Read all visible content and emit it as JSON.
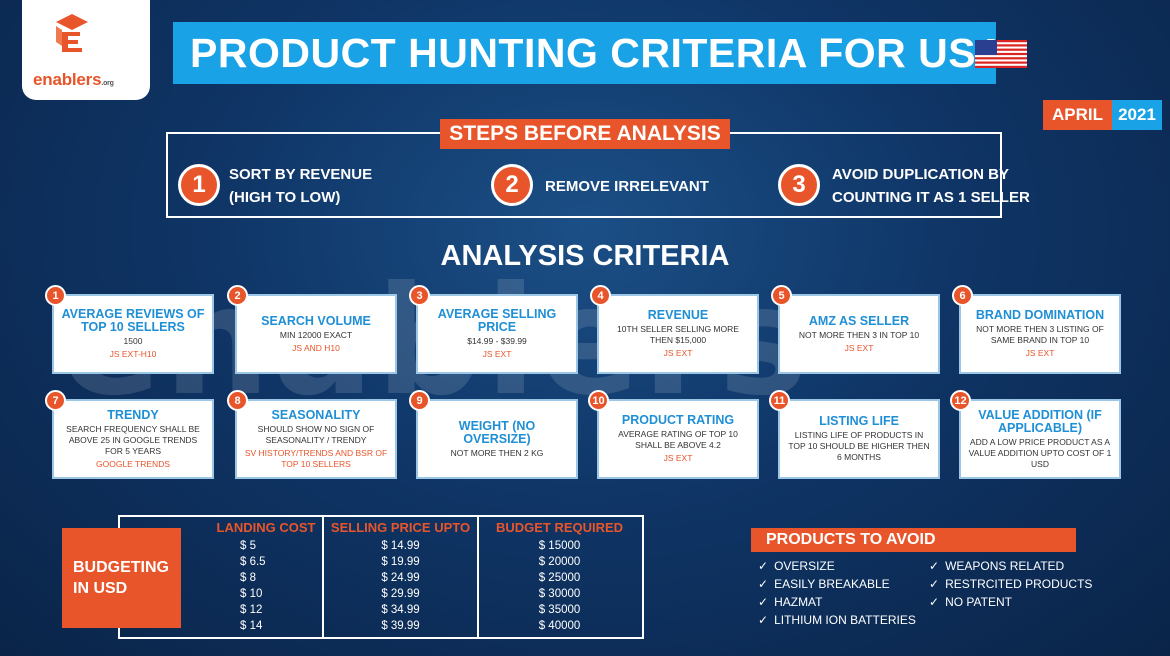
{
  "logo": {
    "name": "enablers",
    "suffix": ".org"
  },
  "title": "PRODUCT HUNTING CRITERIA FOR USA",
  "date": {
    "month": "APRIL",
    "year": "2021"
  },
  "steps": {
    "title": "STEPS BEFORE ANALYSIS",
    "items": [
      {
        "num": "1",
        "line1": "SORT BY REVENUE",
        "line2": "(HIGH TO LOW)"
      },
      {
        "num": "2",
        "line1": "REMOVE IRRELEVANT",
        "line2": ""
      },
      {
        "num": "3",
        "line1": "AVOID DUPLICATION BY",
        "line2": "COUNTING IT AS 1 SELLER"
      }
    ]
  },
  "analysis": {
    "title": "ANALYSIS CRITERIA",
    "cards": [
      {
        "num": "1",
        "title": "AVERAGE REVIEWS OF TOP 10 SELLERS",
        "desc": "1500",
        "source": "JS EXT-H10"
      },
      {
        "num": "2",
        "title": "SEARCH VOLUME",
        "desc": "MIN 12000 EXACT",
        "source": "JS AND H10"
      },
      {
        "num": "3",
        "title": "AVERAGE SELLING PRICE",
        "desc": "$14.99 - $39.99",
        "source": "JS EXT"
      },
      {
        "num": "4",
        "title": "REVENUE",
        "desc": "10TH SELLER SELLING MORE THEN $15,000",
        "source": "JS EXT"
      },
      {
        "num": "5",
        "title": "AMZ AS SELLER",
        "desc": "NOT MORE THEN 3 IN TOP 10",
        "source": "JS EXT"
      },
      {
        "num": "6",
        "title": "BRAND DOMINATION",
        "desc": "NOT MORE THEN 3 LISTING OF SAME BRAND IN TOP 10",
        "source": "JS EXT"
      },
      {
        "num": "7",
        "title": "TRENDY",
        "desc": "SEARCH FREQUENCY SHALL BE ABOVE 25 IN GOOGLE TRENDS FOR 5 YEARS",
        "source": "GOOGLE TRENDS"
      },
      {
        "num": "8",
        "title": "SEASONALITY",
        "desc": "SHOULD SHOW NO SIGN OF SEASONALITY / TRENDY",
        "source": "SV HISTORY/TRENDS AND BSR OF TOP 10 SELLERS"
      },
      {
        "num": "9",
        "title": "WEIGHT (NO OVERSIZE)",
        "desc": "NOT MORE THEN 2 KG",
        "source": ""
      },
      {
        "num": "10",
        "title": "PRODUCT RATING",
        "desc": "AVERAGE RATING OF TOP 10 SHALL BE ABOVE 4.2",
        "source": "JS EXT"
      },
      {
        "num": "11",
        "title": "LISTING LIFE",
        "desc": "LISTING LIFE OF PRODUCTS IN TOP 10 SHOULD BE HIGHER THEN 6 MONTHS",
        "source": ""
      },
      {
        "num": "12",
        "title": "VALUE ADDITION (IF APPLICABLE)",
        "desc": "ADD A LOW PRICE PRODUCT AS A VALUE ADDITION UPTO COST OF 1 USD",
        "source": ""
      }
    ]
  },
  "budget": {
    "label_line1": "BUDGETING",
    "label_line2": "IN USD",
    "headers": [
      "LANDING COST",
      "SELLING PRICE UPTO",
      "BUDGET REQUIRED"
    ],
    "landing_cost": [
      "$ 5",
      "$ 6.5",
      "$ 8",
      "$ 10",
      "$ 12",
      "$ 14"
    ],
    "selling_price": [
      "$ 14.99",
      "$ 19.99",
      "$ 24.99",
      "$ 29.99",
      "$ 34.99",
      "$ 39.99"
    ],
    "budget_required": [
      "$ 15000",
      "$ 20000",
      "$ 25000",
      "$ 30000",
      "$ 35000",
      "$ 40000"
    ]
  },
  "avoid": {
    "title": "PRODUCTS TO AVOID",
    "check": "✓",
    "left": [
      "OVERSIZE",
      "EASILY BREAKABLE",
      "HAZMAT",
      "LITHIUM ION BATTERIES"
    ],
    "right": [
      "WEAPONS RELATED",
      "RESTRCITED PRODUCTS",
      "NO PATENT"
    ]
  }
}
